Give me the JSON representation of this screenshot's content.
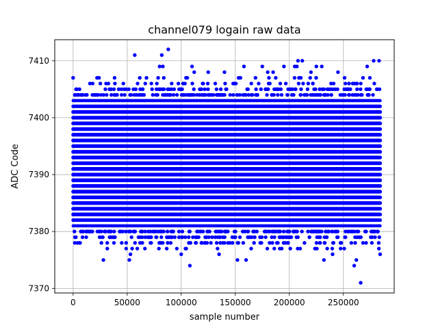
{
  "chart_data": {
    "type": "scatter",
    "title": "channel079 logain raw data",
    "xlabel": "sample number",
    "ylabel": "ADC Code",
    "xlim": [
      -17000,
      297000
    ],
    "ylim": [
      7369.2,
      7413.7
    ],
    "xticks": [
      {
        "value": 0,
        "label": "0"
      },
      {
        "value": 50000,
        "label": "50000"
      },
      {
        "value": 100000,
        "label": "100000"
      },
      {
        "value": 150000,
        "label": "150000"
      },
      {
        "value": 200000,
        "label": "200000"
      },
      {
        "value": 250000,
        "label": "250000"
      }
    ],
    "yticks": [
      {
        "value": 7370,
        "label": "7370"
      },
      {
        "value": 7380,
        "label": "7380"
      },
      {
        "value": 7390,
        "label": "7390"
      },
      {
        "value": 7400,
        "label": "7400"
      },
      {
        "value": 7410,
        "label": "7410"
      }
    ],
    "grid": true,
    "marker_color": "#0000ff",
    "x_range": [
      0,
      284000
    ],
    "dense_bands": [
      {
        "y": 7381,
        "density": 0.85
      },
      {
        "y": 7382,
        "density": 0.95
      },
      {
        "y": 7383,
        "density": 1.0
      },
      {
        "y": 7384,
        "density": 1.0
      },
      {
        "y": 7385,
        "density": 1.0
      },
      {
        "y": 7386,
        "density": 1.0
      },
      {
        "y": 7387,
        "density": 1.0
      },
      {
        "y": 7388,
        "density": 1.0
      },
      {
        "y": 7389,
        "density": 1.0
      },
      {
        "y": 7390,
        "density": 1.0
      },
      {
        "y": 7391,
        "density": 1.0
      },
      {
        "y": 7392,
        "density": 1.0
      },
      {
        "y": 7393,
        "density": 1.0
      },
      {
        "y": 7394,
        "density": 1.0
      },
      {
        "y": 7395,
        "density": 1.0
      },
      {
        "y": 7396,
        "density": 1.0
      },
      {
        "y": 7397,
        "density": 1.0
      },
      {
        "y": 7398,
        "density": 1.0
      },
      {
        "y": 7399,
        "density": 1.0
      },
      {
        "y": 7400,
        "density": 1.0
      },
      {
        "y": 7401,
        "density": 1.0
      },
      {
        "y": 7402,
        "density": 0.95
      },
      {
        "y": 7403,
        "density": 0.85
      }
    ],
    "sparse_bands": [
      {
        "y": 7377,
        "count": 26
      },
      {
        "y": 7378,
        "count": 70
      },
      {
        "y": 7379,
        "count": 120
      },
      {
        "y": 7380,
        "count": 160
      },
      {
        "y": 7404,
        "count": 150
      },
      {
        "y": 7405,
        "count": 90
      },
      {
        "y": 7406,
        "count": 45
      },
      {
        "y": 7407,
        "count": 22
      }
    ],
    "outliers": [
      {
        "x": 0,
        "y": 7407
      },
      {
        "x": 57000,
        "y": 7411
      },
      {
        "x": 80000,
        "y": 7409
      },
      {
        "x": 82000,
        "y": 7411
      },
      {
        "x": 83000,
        "y": 7409
      },
      {
        "x": 88000,
        "y": 7412
      },
      {
        "x": 110000,
        "y": 7409
      },
      {
        "x": 112000,
        "y": 7408
      },
      {
        "x": 125000,
        "y": 7408
      },
      {
        "x": 140000,
        "y": 7408
      },
      {
        "x": 158000,
        "y": 7409
      },
      {
        "x": 175000,
        "y": 7409
      },
      {
        "x": 180000,
        "y": 7408
      },
      {
        "x": 185000,
        "y": 7408
      },
      {
        "x": 195000,
        "y": 7409
      },
      {
        "x": 205000,
        "y": 7409
      },
      {
        "x": 207000,
        "y": 7409
      },
      {
        "x": 208000,
        "y": 7410
      },
      {
        "x": 212000,
        "y": 7410
      },
      {
        "x": 220000,
        "y": 7408
      },
      {
        "x": 225000,
        "y": 7409
      },
      {
        "x": 230000,
        "y": 7409
      },
      {
        "x": 245000,
        "y": 7408
      },
      {
        "x": 272000,
        "y": 7409
      },
      {
        "x": 278000,
        "y": 7410
      },
      {
        "x": 283000,
        "y": 7410
      },
      {
        "x": 28000,
        "y": 7375
      },
      {
        "x": 52000,
        "y": 7375
      },
      {
        "x": 53000,
        "y": 7376
      },
      {
        "x": 100000,
        "y": 7376
      },
      {
        "x": 108000,
        "y": 7374
      },
      {
        "x": 135000,
        "y": 7376
      },
      {
        "x": 152000,
        "y": 7375
      },
      {
        "x": 160000,
        "y": 7375
      },
      {
        "x": 232000,
        "y": 7375
      },
      {
        "x": 240000,
        "y": 7376
      },
      {
        "x": 260000,
        "y": 7374
      },
      {
        "x": 262000,
        "y": 7375
      },
      {
        "x": 266000,
        "y": 7371
      },
      {
        "x": 284000,
        "y": 7376
      }
    ]
  }
}
